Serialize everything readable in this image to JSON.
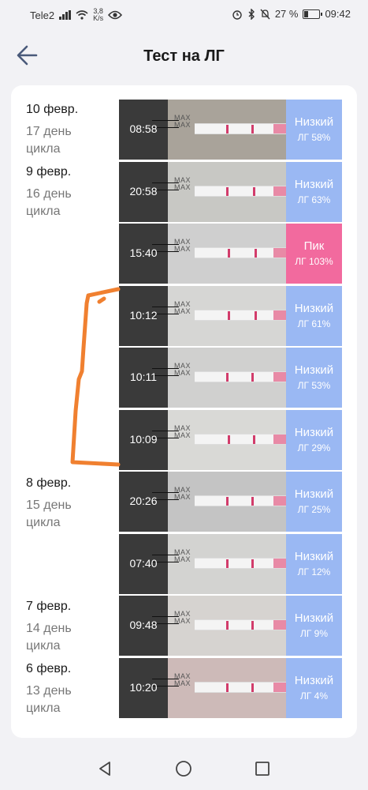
{
  "status": {
    "carrier": "Tele2",
    "speed_value": "3,8",
    "speed_unit": "K/s",
    "battery": "27 %",
    "battery_level": 0.27,
    "time": "09:42"
  },
  "header": {
    "title": "Тест на ЛГ"
  },
  "entries": [
    {
      "date": "10 февр.",
      "cycle": "17 день цикла"
    },
    {
      "date": "9 февр.",
      "cycle": "16 день цикла"
    },
    {
      "date": "8 февр.",
      "cycle": "15 день цикла"
    },
    {
      "date": "7 февр.",
      "cycle": "14 день цикла"
    },
    {
      "date": "6 февр.",
      "cycle": "13 день цикла"
    }
  ],
  "max_label": "MAX",
  "tests": [
    {
      "time": "08:58",
      "level": "Низкий",
      "pct": "ЛГ 58%",
      "type": "low"
    },
    {
      "time": "20:58",
      "level": "Низкий",
      "pct": "ЛГ 63%",
      "type": "low"
    },
    {
      "time": "15:40",
      "level": "Пик",
      "pct": "ЛГ 103%",
      "type": "peak"
    },
    {
      "time": "10:12",
      "level": "Низкий",
      "pct": "ЛГ 61%",
      "type": "low"
    },
    {
      "time": "10:11",
      "level": "Низкий",
      "pct": "ЛГ 53%",
      "type": "low"
    },
    {
      "time": "10:09",
      "level": "Низкий",
      "pct": "ЛГ 29%",
      "type": "low"
    },
    {
      "time": "20:26",
      "level": "Низкий",
      "pct": "ЛГ 25%",
      "type": "low"
    },
    {
      "time": "07:40",
      "level": "Низкий",
      "pct": "ЛГ 12%",
      "type": "low"
    },
    {
      "time": "09:48",
      "level": "Низкий",
      "pct": "ЛГ 9%",
      "type": "low"
    },
    {
      "time": "10:20",
      "level": "Низкий",
      "pct": "ЛГ 4%",
      "type": "low"
    }
  ],
  "colors": {
    "low": "#9ab8f3",
    "peak": "#f26a9e",
    "annotation": "#f08030"
  },
  "icons": {
    "back": "arrow-left-icon",
    "nav_back": "triangle-back-icon",
    "nav_home": "circle-home-icon",
    "nav_recent": "square-recent-icon"
  }
}
